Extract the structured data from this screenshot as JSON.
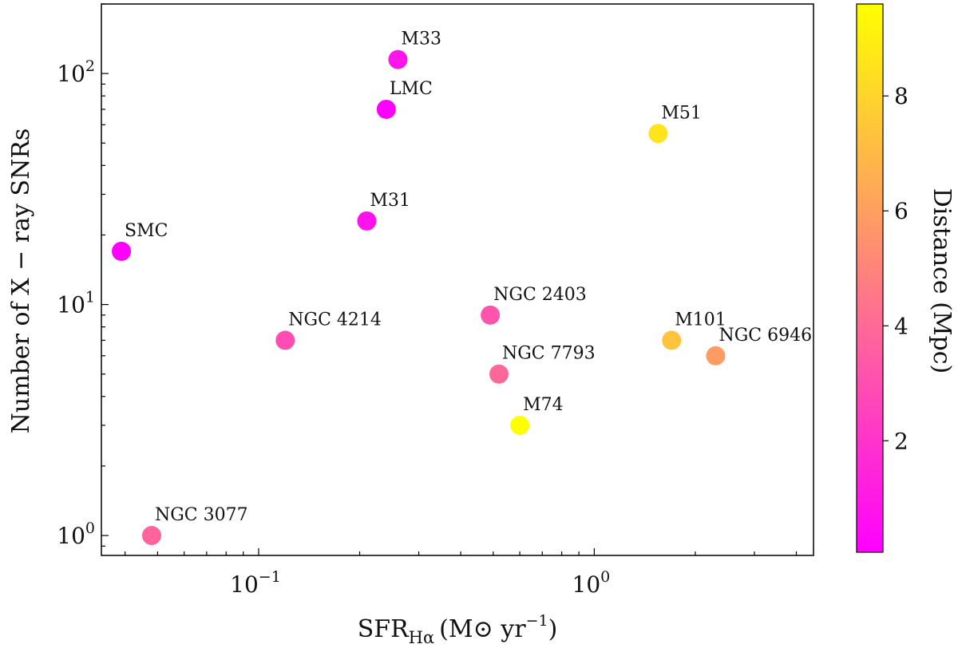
{
  "chart_data": {
    "type": "scatter",
    "x_scale": "log",
    "y_scale": "log",
    "xlabel": "SFR_Hα (M⊙ yr⁻¹)",
    "xlabel_main": "SFR",
    "xlabel_sub": "Hα",
    "xlabel_units": "(M⊙ yr",
    "xlabel_exp": "−1",
    "xlabel_close": ")",
    "ylabel": "Number of X − ray SNRs",
    "xlim": [
      0.034,
      4.5
    ],
    "ylim": [
      0.82,
      200
    ],
    "x_ticks": [
      {
        "value": 0.1,
        "base": "10",
        "exp": "−1"
      },
      {
        "value": 1,
        "base": "10",
        "exp": "0"
      }
    ],
    "y_ticks": [
      {
        "value": 1,
        "base": "10",
        "exp": "0"
      },
      {
        "value": 10,
        "base": "10",
        "exp": "1"
      },
      {
        "value": 100,
        "base": "10",
        "exp": "2"
      }
    ],
    "colorbar": {
      "label": "Distance (Mpc)",
      "range": [
        0.06,
        9.6
      ],
      "ticks": [
        2,
        4,
        6,
        8
      ],
      "low_color": "#ff00ff",
      "high_color": "#ffff00"
    },
    "points": [
      {
        "name": "M33",
        "x": 0.26,
        "y": 115,
        "distance": 0.85
      },
      {
        "name": "LMC",
        "x": 0.24,
        "y": 70,
        "distance": 0.05
      },
      {
        "name": "M51",
        "x": 1.55,
        "y": 55,
        "distance": 8.6
      },
      {
        "name": "M31",
        "x": 0.21,
        "y": 23,
        "distance": 0.78
      },
      {
        "name": "SMC",
        "x": 0.039,
        "y": 17,
        "distance": 0.06
      },
      {
        "name": "NGC 2403",
        "x": 0.49,
        "y": 9,
        "distance": 3.2
      },
      {
        "name": "NGC 4214",
        "x": 0.12,
        "y": 7,
        "distance": 2.9
      },
      {
        "name": "M101",
        "x": 1.7,
        "y": 7,
        "distance": 7.4
      },
      {
        "name": "NGC 6946",
        "x": 2.3,
        "y": 6,
        "distance": 5.9
      },
      {
        "name": "NGC 7793",
        "x": 0.52,
        "y": 5,
        "distance": 3.9
      },
      {
        "name": "M74",
        "x": 0.6,
        "y": 3,
        "distance": 9.6
      },
      {
        "name": "NGC 3077",
        "x": 0.048,
        "y": 1,
        "distance": 3.8
      }
    ]
  }
}
